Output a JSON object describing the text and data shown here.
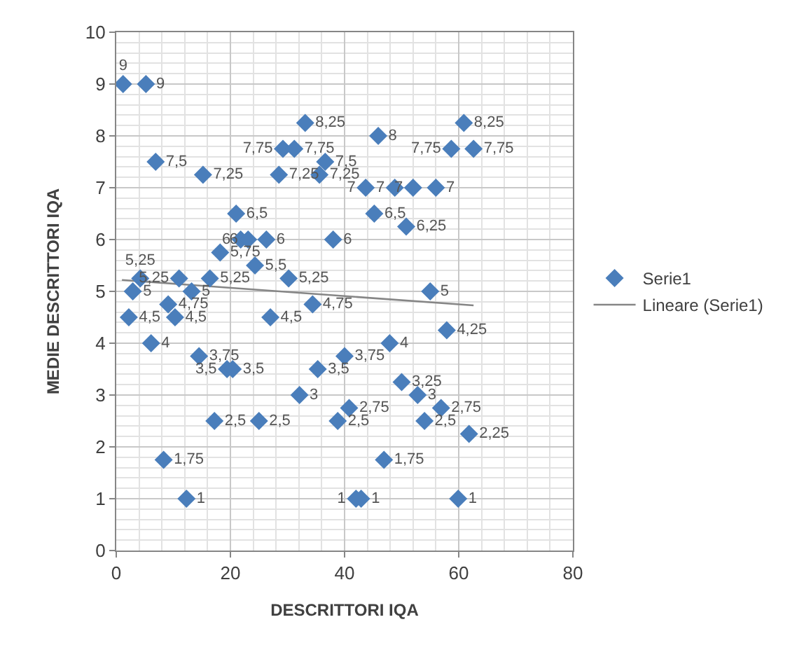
{
  "chart_data": {
    "type": "scatter",
    "xlabel": "DESCRITTORI IQA",
    "ylabel": "MEDIE DESCRITTORI IQA",
    "xlim": [
      0,
      80
    ],
    "xticks": [
      0,
      20,
      40,
      60,
      80
    ],
    "ylim": [
      0,
      10
    ],
    "yticks": [
      0,
      1,
      2,
      3,
      4,
      5,
      6,
      7,
      8,
      9,
      10
    ],
    "grid": true,
    "legend": "right",
    "marker": "diamond",
    "series": [
      {
        "name": "Serie1",
        "color": "#4a7ebb",
        "x": [
          1.2,
          5.2,
          6.9,
          15.2,
          33.1,
          29.2,
          31.2,
          28.5,
          36.6,
          35.6,
          45.9,
          43.7,
          48.8,
          52,
          56,
          58.7,
          60.9,
          62.6,
          45.2,
          50.8,
          38,
          21,
          21.8,
          23.1,
          26.3,
          18.2,
          24.3,
          30.2,
          4.2,
          2.9,
          2.2,
          11,
          9.1,
          13.2,
          10.3,
          16.4,
          6.1,
          14.5,
          19.4,
          20.4,
          17.2,
          8.3,
          12.3,
          27,
          25,
          32.1,
          34.4,
          35.3,
          55,
          57.9,
          47.9,
          40,
          50,
          52.8,
          56.9,
          40.8,
          38.8,
          54,
          61.8,
          46.9,
          42,
          42.9,
          59.9
        ],
        "values": [
          9,
          9,
          7.5,
          7.25,
          8.25,
          7.75,
          7.75,
          7.25,
          7.5,
          7.25,
          8,
          7,
          7,
          7,
          7,
          7.75,
          8.25,
          7.75,
          6.5,
          6.25,
          6,
          6.5,
          6,
          6,
          6,
          5.75,
          5.5,
          5.25,
          5.25,
          5,
          4.5,
          5.25,
          4.75,
          5,
          4.5,
          5.25,
          4,
          3.75,
          3.5,
          3.5,
          2.5,
          1.75,
          1,
          4.5,
          2.5,
          3,
          4.75,
          3.5,
          5,
          4.25,
          4,
          3.75,
          3.25,
          3,
          2.75,
          2.75,
          2.5,
          2.5,
          2.25,
          1.75,
          1,
          1,
          1
        ],
        "value_labels": [
          "9",
          "9",
          "7,5",
          "7,25",
          "8,25",
          "7,75",
          "7,75",
          "7,25",
          "7,5",
          "7,25",
          "8",
          "7",
          "7",
          "7",
          "7",
          "7,75",
          "8,25",
          "7,75",
          "6,5",
          "6,25",
          "6",
          "6,5",
          "6",
          "6",
          "6",
          "5,75",
          "5,5",
          "5,25",
          "5,25",
          "5",
          "4,5",
          "5,25",
          "4,75",
          "5",
          "4,5",
          "5,25",
          "4",
          "3,75",
          "3,5",
          "3,5",
          "2,5",
          "1,75",
          "1",
          "4,5",
          "2,5",
          "3",
          "4,75",
          "3,5",
          "5",
          "4,25",
          "4",
          "3,75",
          "3,25",
          "3",
          "2,75",
          "2,75",
          "2,5",
          "2,5",
          "2,25",
          "1,75",
          "1",
          "1",
          "1"
        ]
      },
      {
        "name": "Lineare (Serie1)",
        "type": "line",
        "color": "#868686",
        "marker": "none",
        "x": [
          1,
          62.6
        ],
        "values": [
          5.22,
          4.73
        ]
      }
    ]
  }
}
